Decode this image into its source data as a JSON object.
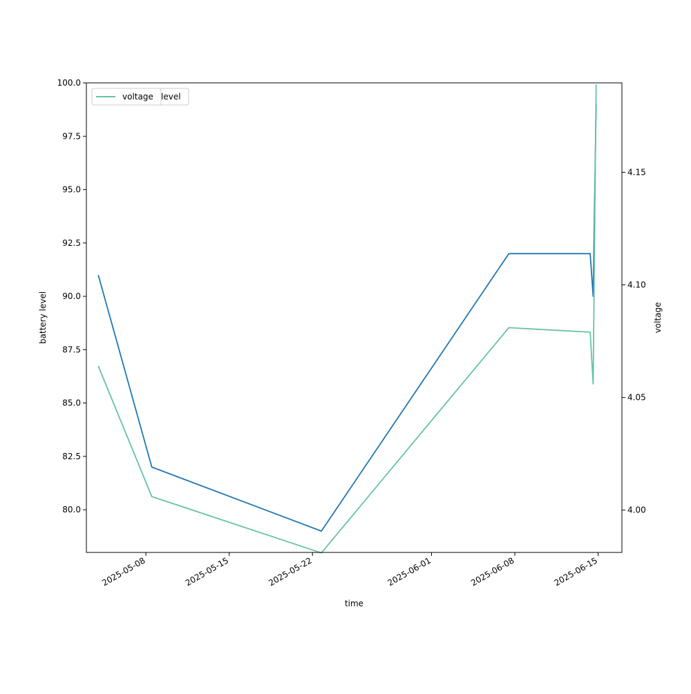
{
  "chart_data": {
    "type": "line",
    "xlabel": "time",
    "ylabel_left": "battery level",
    "ylabel_right": "voltage",
    "xlim": [
      "2025-05-03",
      "2025-06-17"
    ],
    "ylim_left": [
      78.0,
      100.0
    ],
    "ylim_right": [
      3.9812,
      4.1897
    ],
    "x_ticks": [
      "2025-05-08",
      "2025-05-15",
      "2025-05-22",
      "2025-06-01",
      "2025-06-08",
      "2025-06-15"
    ],
    "y_ticks_left": [
      "80.0",
      "82.5",
      "85.0",
      "87.5",
      "90.0",
      "92.5",
      "95.0",
      "97.5",
      "100.0"
    ],
    "y_ticks_right": [
      "4.00",
      "4.05",
      "4.10",
      "4.15"
    ],
    "grid": false,
    "legend_placement": "upper-left",
    "legend_entries": [
      "voltage",
      "level"
    ],
    "colors": {
      "level": "#1f77b4",
      "voltage": "#66c2a5"
    },
    "series": [
      {
        "name": "level",
        "axis": "left",
        "x": [
          "2025-05-04",
          "2025-05-08 12:00",
          "2025-05-22 18:00",
          "2025-06-07 12:00",
          "2025-06-14 08:00",
          "2025-06-14 14:00",
          "2025-06-14 20:00"
        ],
        "y": [
          91.0,
          82.0,
          79.0,
          92.0,
          92.0,
          90.0,
          99.0
        ]
      },
      {
        "name": "voltage",
        "axis": "right",
        "x": [
          "2025-05-04",
          "2025-05-08 12:00",
          "2025-05-22 18:00",
          "2025-06-07 12:00",
          "2025-06-14 08:00",
          "2025-06-14 14:00",
          "2025-06-14 20:00"
        ],
        "y": [
          4.064,
          4.006,
          3.981,
          4.081,
          4.079,
          4.056,
          4.189
        ]
      }
    ]
  }
}
